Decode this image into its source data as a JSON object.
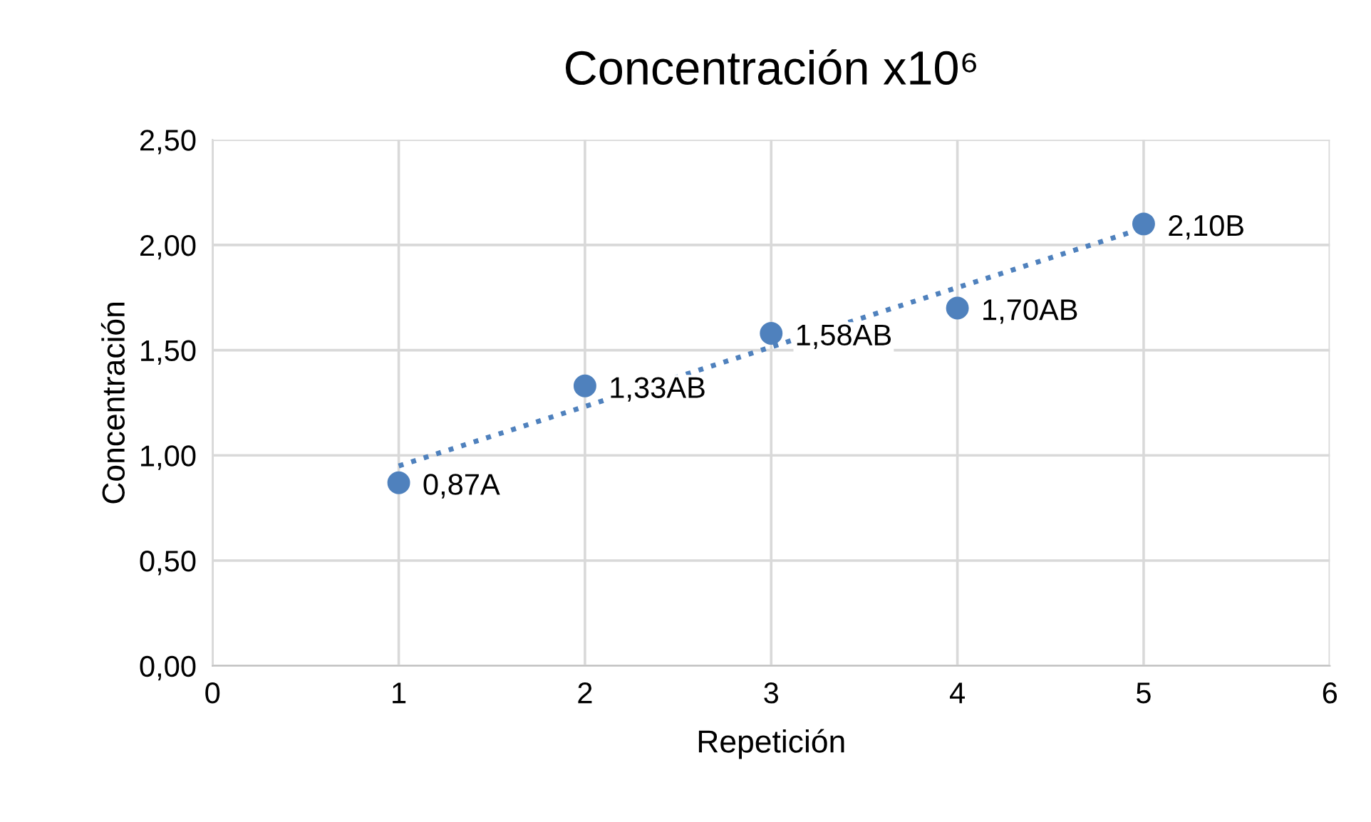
{
  "chart_data": {
    "type": "scatter",
    "title": "Concentración x10⁶",
    "xlabel": "Repetición",
    "ylabel": "Concentración",
    "xlim": [
      0,
      6
    ],
    "xticks": [
      0,
      1,
      2,
      3,
      4,
      5,
      6
    ],
    "ylim": [
      0,
      2.5
    ],
    "yticks": [
      {
        "value": 0,
        "label": "0,00"
      },
      {
        "value": 0.5,
        "label": "0,50"
      },
      {
        "value": 1,
        "label": "1,00"
      },
      {
        "value": 1.5,
        "label": "1,50"
      },
      {
        "value": 2,
        "label": "2,00"
      },
      {
        "value": 2.5,
        "label": "2,50"
      }
    ],
    "grid": true,
    "marker": "circle",
    "series": [
      {
        "color": "#4f81bd",
        "x": [
          1,
          2,
          3,
          4,
          5
        ],
        "values": [
          0.87,
          1.33,
          1.58,
          1.7,
          2.1
        ],
        "value_labels": [
          "0,87A",
          "1,33AB",
          "1,58AB",
          "1,70AB",
          "2,10B"
        ]
      },
      {
        "type": "line",
        "color": "#4f81bd",
        "x": [
          1,
          5
        ],
        "values": [
          0.95,
          2.08
        ],
        "line_style": "dotted",
        "marker": "none"
      }
    ]
  }
}
